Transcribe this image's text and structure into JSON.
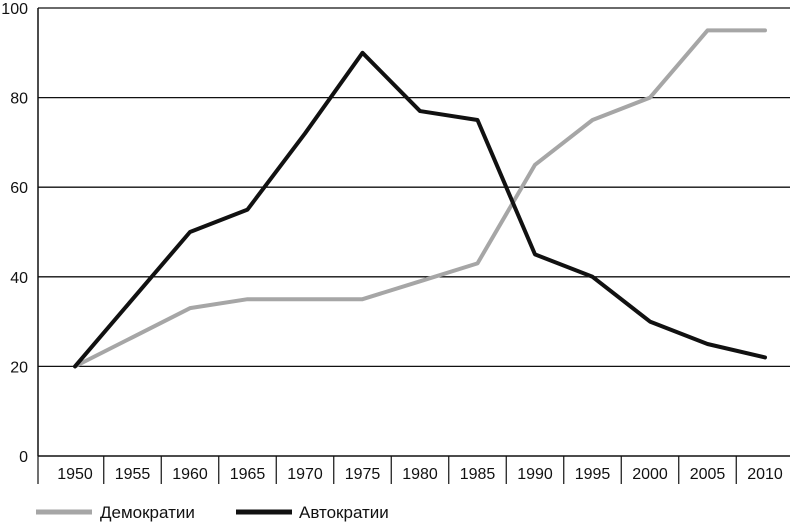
{
  "chart_data": {
    "type": "line",
    "title": "",
    "xlabel": "",
    "ylabel": "",
    "x": [
      1950,
      1955,
      1960,
      1965,
      1970,
      1975,
      1980,
      1985,
      1990,
      1995,
      2000,
      2005,
      2010
    ],
    "x_tick_labels": [
      "1950",
      "1955",
      "1960",
      "1965",
      "1970",
      "1975",
      "1980",
      "1985",
      "1990",
      "1995",
      "2000",
      "2005",
      "2010"
    ],
    "y_ticks": [
      0,
      20,
      40,
      60,
      80,
      100
    ],
    "y_tick_labels": [
      "0",
      "20",
      "40",
      "60",
      "80",
      "100"
    ],
    "ylim": [
      0,
      100
    ],
    "grid": "horizontal",
    "legend_position": "bottom-left",
    "series": [
      {
        "name": "Демократии",
        "color": "#a6a6a6",
        "values": [
          20,
          26.5,
          33,
          35,
          35,
          35,
          39,
          43,
          65,
          75,
          80,
          95,
          95
        ]
      },
      {
        "name": "Автократии",
        "color": "#111111",
        "values": [
          20,
          35,
          50,
          55,
          72,
          90,
          77,
          75,
          45,
          40,
          30,
          25,
          22
        ]
      }
    ]
  }
}
